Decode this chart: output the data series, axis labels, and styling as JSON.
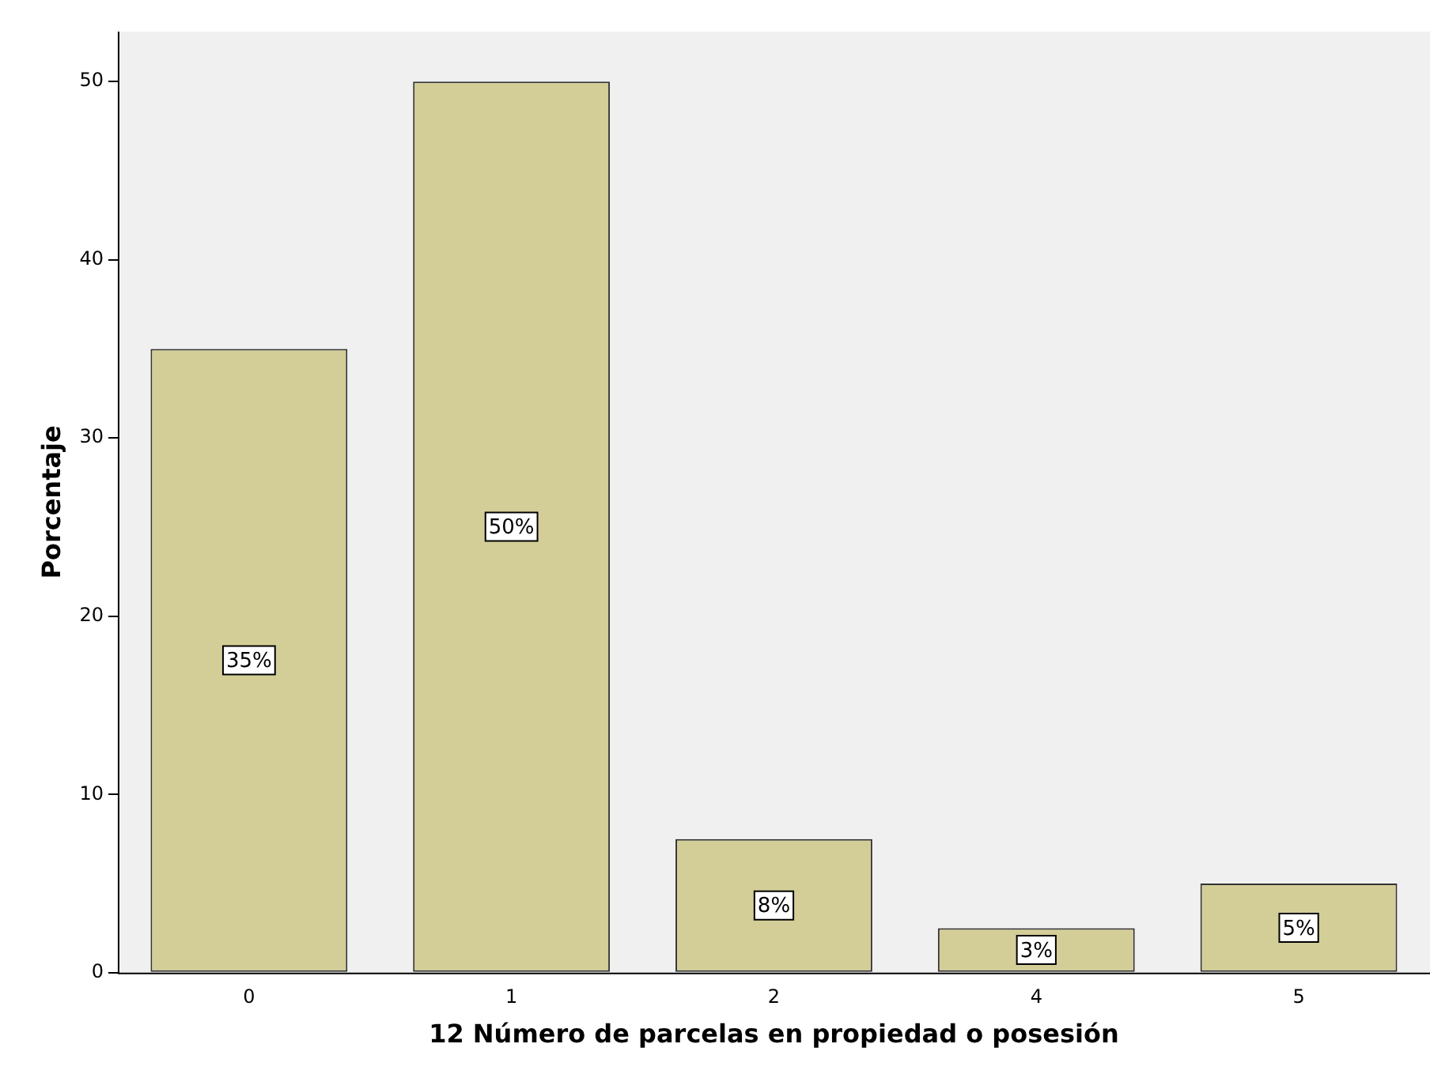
{
  "chart_data": {
    "type": "bar",
    "xlabel": "12 Número de parcelas en propiedad o posesión",
    "ylabel": "Porcentaje",
    "categories": [
      "0",
      "1",
      "2",
      "4",
      "5"
    ],
    "values": [
      35,
      50,
      7.5,
      2.5,
      5
    ],
    "value_labels": [
      "35%",
      "50%",
      "8%",
      "3%",
      "5%"
    ],
    "color": "#d3ce97",
    "ylim": [
      0,
      52.8
    ],
    "yticks": [
      0,
      10,
      20,
      30,
      40,
      50
    ],
    "grid": false,
    "legend": false
  }
}
